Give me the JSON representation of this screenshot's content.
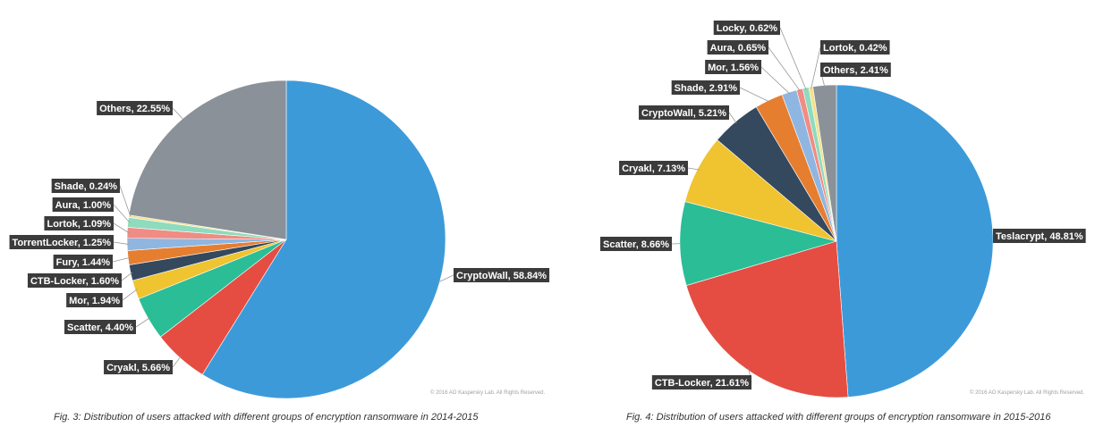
{
  "chart_data": [
    {
      "type": "pie",
      "caption": "Fig. 3: Distribution of users attacked with different groups of encryption ransomware in 2014-2015",
      "copyright": "© 2016 AO Kaspersky Lab. All Rights Reserved.",
      "slices": [
        {
          "name": "CryptoWall",
          "value": 58.84,
          "label": "CryptoWall, 58.84%",
          "color": "#3d9ad9"
        },
        {
          "name": "Cryakl",
          "value": 5.66,
          "label": "Cryakl, 5.66%",
          "color": "#e54d42"
        },
        {
          "name": "Scatter",
          "value": 4.4,
          "label": "Scatter, 4.40%",
          "color": "#2bbd96"
        },
        {
          "name": "Mor",
          "value": 1.94,
          "label": "Mor, 1.94%",
          "color": "#f0c330"
        },
        {
          "name": "CTB-Locker",
          "value": 1.6,
          "label": "CTB-Locker, 1.60%",
          "color": "#34495e"
        },
        {
          "name": "Fury",
          "value": 1.44,
          "label": "Fury, 1.44%",
          "color": "#e67e30"
        },
        {
          "name": "TorrentLocker",
          "value": 1.25,
          "label": "TorrentLocker, 1.25%",
          "color": "#8fb6e0"
        },
        {
          "name": "Lortok",
          "value": 1.09,
          "label": "Lortok, 1.09%",
          "color": "#f08c84"
        },
        {
          "name": "Aura",
          "value": 1.0,
          "label": "Aura, 1.00%",
          "color": "#8edbbd"
        },
        {
          "name": "Shade",
          "value": 0.24,
          "label": "Shade, 0.24%",
          "color": "#f5e08c"
        },
        {
          "name": "Others",
          "value": 22.55,
          "label": "Others, 22.55%",
          "color": "#8a9199"
        }
      ]
    },
    {
      "type": "pie",
      "caption": "Fig. 4: Distribution of users attacked with different groups of encryption ransomware in 2015-2016",
      "copyright": "© 2016 AO Kaspersky Lab. All Rights Reserved.",
      "slices": [
        {
          "name": "Teslacrypt",
          "value": 48.81,
          "label": "Teslacrypt, 48.81%",
          "color": "#3d9ad9"
        },
        {
          "name": "CTB-Locker",
          "value": 21.61,
          "label": "CTB-Locker, 21.61%",
          "color": "#e54d42"
        },
        {
          "name": "Scatter",
          "value": 8.66,
          "label": "Scatter, 8.66%",
          "color": "#2bbd96"
        },
        {
          "name": "Cryakl",
          "value": 7.13,
          "label": "Cryakl, 7.13%",
          "color": "#f0c330"
        },
        {
          "name": "CryptoWall",
          "value": 5.21,
          "label": "CryptoWall, 5.21%",
          "color": "#34495e"
        },
        {
          "name": "Shade",
          "value": 2.91,
          "label": "Shade, 2.91%",
          "color": "#e67e30"
        },
        {
          "name": "Mor",
          "value": 1.56,
          "label": "Mor, 1.56%",
          "color": "#8fb6e0"
        },
        {
          "name": "Aura",
          "value": 0.65,
          "label": "Aura, 0.65%",
          "color": "#f08c84"
        },
        {
          "name": "Locky",
          "value": 0.62,
          "label": "Locky, 0.62%",
          "color": "#8edbbd"
        },
        {
          "name": "Lortok",
          "value": 0.42,
          "label": "Lortok, 0.42%",
          "color": "#f5e08c"
        },
        {
          "name": "Others",
          "value": 2.41,
          "label": "Others, 2.41%",
          "color": "#8a9199"
        }
      ]
    }
  ]
}
